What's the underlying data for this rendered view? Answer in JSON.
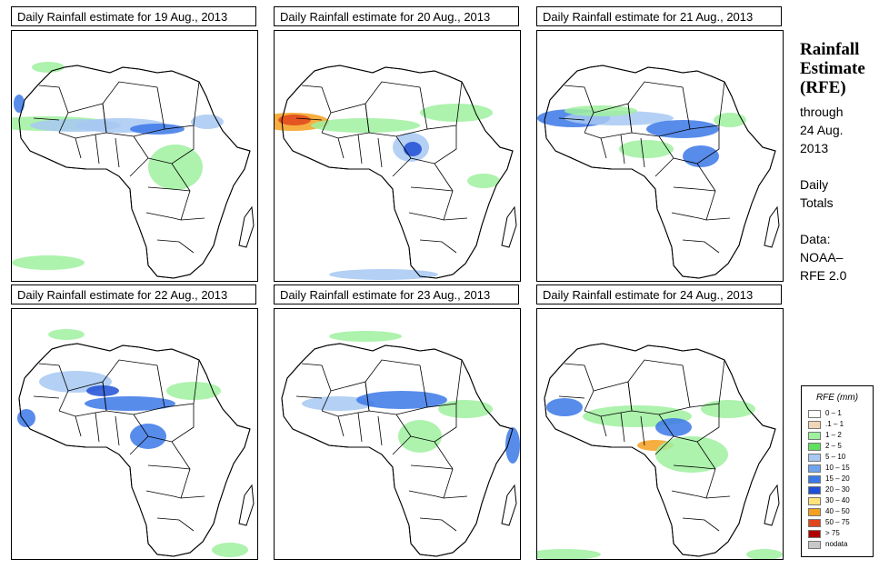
{
  "panels": [
    {
      "title": "Daily Rainfall estimate for  19 Aug., 2013"
    },
    {
      "title": "Daily Rainfall estimate for  20 Aug., 2013"
    },
    {
      "title": "Daily Rainfall estimate for  21 Aug., 2013"
    },
    {
      "title": "Daily Rainfall estimate for  22 Aug., 2013"
    },
    {
      "title": "Daily Rainfall estimate for  23 Aug., 2013"
    },
    {
      "title": "Daily Rainfall estimate for  24 Aug., 2013"
    }
  ],
  "side": {
    "title_line1": "Rainfall",
    "title_line2": "Estimate",
    "title_line3": "(RFE)",
    "through": "through",
    "date_line1": "24 Aug.",
    "date_line2": "2013",
    "totals_line1": "Daily",
    "totals_line2": "Totals",
    "data_line1": "Data:",
    "data_line2": "NOAA–",
    "data_line3": "RFE 2.0"
  },
  "legend": {
    "title": "RFE (mm)",
    "items": [
      {
        "label": "0 – 1",
        "color": "#ffffff"
      },
      {
        "label": ".1 – 1",
        "color": "#f2d5b8"
      },
      {
        "label": "1 – 2",
        "color": "#9ff09f"
      },
      {
        "label": "2 – 5",
        "color": "#5fe05f"
      },
      {
        "label": "5 – 10",
        "color": "#a7c8f2"
      },
      {
        "label": "10 – 15",
        "color": "#6ea4ee"
      },
      {
        "label": "15 – 20",
        "color": "#3b78e7"
      },
      {
        "label": "20 – 30",
        "color": "#1f4fd6"
      },
      {
        "label": "30 – 40",
        "color": "#ffe27a"
      },
      {
        "label": "40 – 50",
        "color": "#f4a020"
      },
      {
        "label": "50 – 75",
        "color": "#e0451c"
      },
      {
        "label": "> 75",
        "color": "#b00000"
      },
      {
        "label": "nodata",
        "color": "#c8c8c8"
      }
    ]
  },
  "colors": {
    "light_green": "#9ff09f",
    "green": "#5fe05f",
    "light_blue": "#a7c8f2",
    "blue": "#3b78e7",
    "dark_blue": "#1f4fd6",
    "orange": "#f4a020",
    "red": "#e0451c",
    "tan": "#f2d5b8"
  }
}
